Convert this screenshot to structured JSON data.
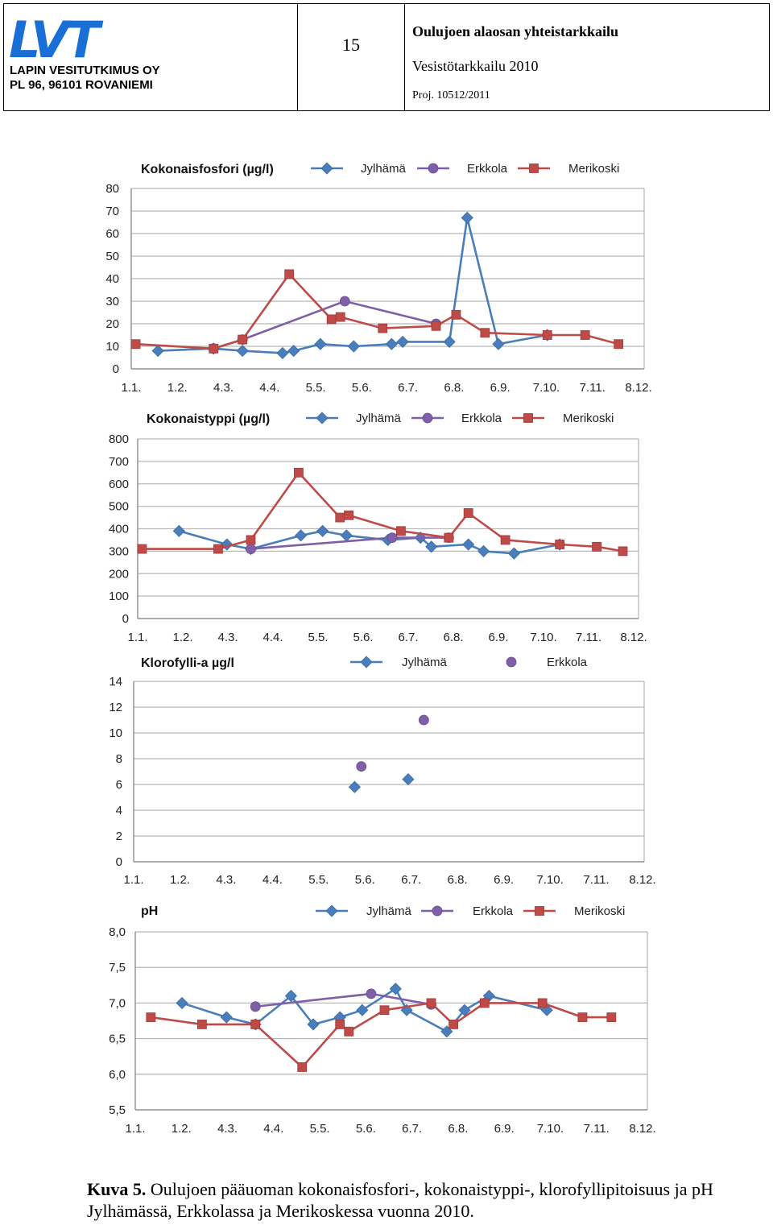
{
  "header": {
    "logo": "LVT",
    "org_name": "LAPIN VESITUTKIMUS OY",
    "org_address": "PL 96, 96101 ROVANIEMI",
    "page_number": "15",
    "report_title": "Oulujoen alaosan yhteistarkkailu",
    "report_subtitle": "Vesistötarkkailu 2010",
    "project": "Proj. 10512/2011"
  },
  "caption": {
    "label": "Kuva 5.",
    "text": "Oulujoen pääuoman kokonaisfosfori-, kokonaistyppi-, klorofyllipitoisuus ja pH Jylhämässä, Erkkolassa ja Merikoskessa vuonna 2010."
  },
  "colors": {
    "Jylhämä": "#4a7ebb",
    "Erkkola": "#7f5fa8",
    "Merikoski": "#be4b48"
  },
  "x_tick_labels": [
    "1.1.",
    "1.2.",
    "4.3.",
    "4.4.",
    "5.5.",
    "5.6.",
    "6.7.",
    "6.8.",
    "6.9.",
    "7.10.",
    "7.11.",
    "8.12."
  ],
  "chart_data": [
    {
      "type": "line",
      "title": "Kokonaisfosfori (µg/l)",
      "x_axis": "date",
      "ylim": [
        0,
        80
      ],
      "yticks": [
        0,
        10,
        20,
        30,
        40,
        50,
        60,
        70,
        80
      ],
      "grid": true,
      "legend": "top",
      "series": [
        {
          "name": "Jylhämä",
          "marker": "diamond",
          "points": [
            [
              "2010-01-06",
              8
            ],
            [
              "2010-01-31",
              9
            ],
            [
              "2010-02-13",
              8
            ],
            [
              "2010-03-03",
              7
            ],
            [
              "2010-03-08",
              8
            ],
            [
              "2010-03-20",
              11
            ],
            [
              "2010-04-04",
              10
            ],
            [
              "2010-04-21",
              11
            ],
            [
              "2010-04-26",
              12
            ],
            [
              "2010-05-17",
              12
            ],
            [
              "2010-05-25",
              67
            ],
            [
              "2010-06-08",
              11
            ],
            [
              "2010-06-30",
              15
            ]
          ]
        },
        {
          "name": "Erkkola",
          "marker": "circle",
          "points": [
            [
              "2010-01-31",
              9
            ],
            [
              "2010-02-13",
              13
            ],
            [
              "2010-03-31",
              30
            ],
            [
              "2010-05-11",
              20
            ]
          ]
        },
        {
          "name": "Merikoski",
          "marker": "square",
          "points": [
            [
              "2009-12-27",
              11
            ],
            [
              "2010-01-31",
              9
            ],
            [
              "2010-02-13",
              13
            ],
            [
              "2010-03-06",
              42
            ],
            [
              "2010-03-25",
              22
            ],
            [
              "2010-03-29",
              23
            ],
            [
              "2010-04-17",
              18
            ],
            [
              "2010-05-11",
              19
            ],
            [
              "2010-05-20",
              24
            ],
            [
              "2010-06-02",
              16
            ],
            [
              "2010-06-30",
              15
            ],
            [
              "2010-07-17",
              15
            ],
            [
              "2010-08-01",
              11
            ]
          ]
        }
      ]
    },
    {
      "type": "line",
      "title": "Kokonaistyppi (µg/l)",
      "x_axis": "date",
      "ylim": [
        0,
        800
      ],
      "yticks": [
        0,
        100,
        200,
        300,
        400,
        500,
        600,
        700,
        800
      ],
      "grid": true,
      "legend": "top",
      "series": [
        {
          "name": "Jylhämä",
          "marker": "diamond",
          "points": [
            [
              "2010-01-13",
              390
            ],
            [
              "2010-02-04",
              330
            ],
            [
              "2010-02-15",
              310
            ],
            [
              "2010-03-10",
              370
            ],
            [
              "2010-03-20",
              390
            ],
            [
              "2010-03-31",
              370
            ],
            [
              "2010-04-19",
              350
            ],
            [
              "2010-05-04",
              360
            ],
            [
              "2010-05-09",
              320
            ],
            [
              "2010-05-26",
              330
            ],
            [
              "2010-06-02",
              300
            ],
            [
              "2010-06-16",
              290
            ],
            [
              "2010-07-07",
              330
            ]
          ]
        },
        {
          "name": "Erkkola",
          "marker": "circle",
          "points": [
            [
              "2010-02-15",
              310
            ],
            [
              "2010-04-21",
              360
            ],
            [
              "2010-05-17",
              360
            ]
          ]
        },
        {
          "name": "Merikoski",
          "marker": "square",
          "points": [
            [
              "2009-12-27",
              310
            ],
            [
              "2010-01-31",
              310
            ],
            [
              "2010-02-15",
              350
            ],
            [
              "2010-03-09",
              650
            ],
            [
              "2010-03-28",
              450
            ],
            [
              "2010-04-01",
              460
            ],
            [
              "2010-04-25",
              390
            ],
            [
              "2010-05-17",
              360
            ],
            [
              "2010-05-26",
              470
            ],
            [
              "2010-06-12",
              350
            ],
            [
              "2010-07-07",
              330
            ],
            [
              "2010-07-24",
              320
            ],
            [
              "2010-08-05",
              300
            ]
          ]
        }
      ]
    },
    {
      "type": "scatter",
      "title": "Klorofylli-a µg/l",
      "x_axis": "date",
      "ylim": [
        0,
        14
      ],
      "yticks": [
        0,
        2,
        4,
        6,
        8,
        10,
        12,
        14
      ],
      "grid": true,
      "legend": "top",
      "series": [
        {
          "name": "Jylhämä",
          "marker": "diamond",
          "points": [
            [
              "2010-04-03",
              5.8
            ],
            [
              "2010-04-27",
              6.4
            ]
          ]
        },
        {
          "name": "Erkkola",
          "marker": "circle",
          "points": [
            [
              "2010-04-06",
              7.4
            ],
            [
              "2010-05-04",
              11.0
            ]
          ]
        }
      ]
    },
    {
      "type": "line",
      "title": "pH",
      "x_axis": "date",
      "ylim": [
        5.5,
        8.0
      ],
      "yticks": [
        "5,5",
        "6,0",
        "6,5",
        "7,0",
        "7,5",
        "8,0"
      ],
      "grid": true,
      "legend": "top",
      "series": [
        {
          "name": "Jylhämä",
          "marker": "diamond",
          "points": [
            [
              "2010-01-15",
              7.0
            ],
            [
              "2010-02-04",
              6.8
            ],
            [
              "2010-02-17",
              6.7
            ],
            [
              "2010-03-05",
              7.1
            ],
            [
              "2010-03-15",
              6.7
            ],
            [
              "2010-03-27",
              6.8
            ],
            [
              "2010-04-06",
              6.9
            ],
            [
              "2010-04-21",
              7.2
            ],
            [
              "2010-04-26",
              6.9
            ],
            [
              "2010-05-14",
              6.6
            ],
            [
              "2010-05-22",
              6.9
            ],
            [
              "2010-06-02",
              7.1
            ],
            [
              "2010-06-28",
              6.9
            ]
          ]
        },
        {
          "name": "Erkkola",
          "marker": "circle",
          "points": [
            [
              "2010-02-17",
              6.95
            ],
            [
              "2010-04-10",
              7.13
            ],
            [
              "2010-05-07",
              6.98
            ]
          ]
        },
        {
          "name": "Merikoski",
          "marker": "square",
          "points": [
            [
              "2010-01-01",
              6.8
            ],
            [
              "2010-01-24",
              6.7
            ],
            [
              "2010-02-17",
              6.7
            ],
            [
              "2010-03-10",
              6.1
            ],
            [
              "2010-03-27",
              6.7
            ],
            [
              "2010-03-31",
              6.6
            ],
            [
              "2010-04-16",
              6.9
            ],
            [
              "2010-05-07",
              7.0
            ],
            [
              "2010-05-17",
              6.7
            ],
            [
              "2010-05-31",
              7.0
            ],
            [
              "2010-06-26",
              7.0
            ],
            [
              "2010-07-14",
              6.8
            ],
            [
              "2010-07-27",
              6.8
            ]
          ]
        }
      ]
    }
  ]
}
